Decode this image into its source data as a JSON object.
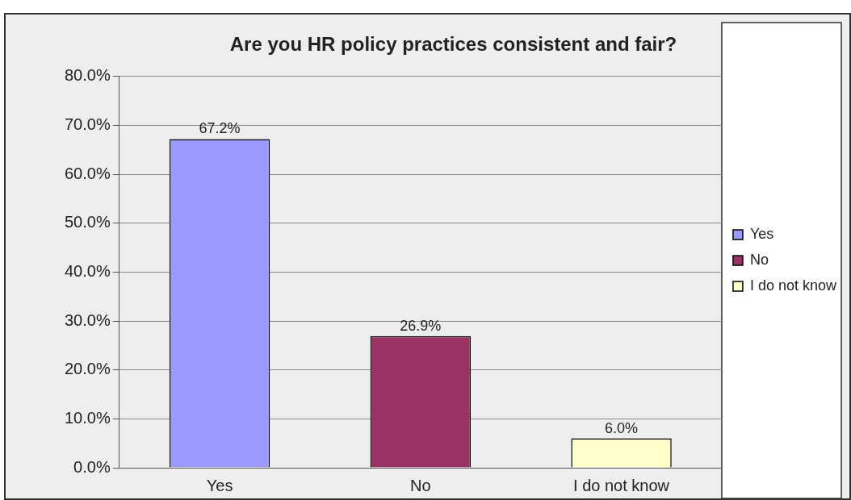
{
  "chart_data": {
    "type": "bar",
    "title": "Are you HR policy practices consistent and fair?",
    "categories": [
      "Yes",
      "No",
      "I do not know"
    ],
    "series": [
      {
        "name": "Yes",
        "color": "#9999ff",
        "values": [
          67.2,
          null,
          null
        ],
        "value_labels": [
          "67.2%",
          null,
          null
        ]
      },
      {
        "name": "No",
        "color": "#993366",
        "values": [
          null,
          26.9,
          null
        ],
        "value_labels": [
          null,
          "26.9%",
          null
        ]
      },
      {
        "name": "I do not know",
        "color": "#ffffcc",
        "values": [
          null,
          null,
          6.0
        ],
        "value_labels": [
          null,
          null,
          "6.0%"
        ]
      }
    ],
    "ylim": [
      0,
      80
    ],
    "yticks": [
      {
        "value": 0,
        "label": "0.0%"
      },
      {
        "value": 10,
        "label": "10.0%"
      },
      {
        "value": 20,
        "label": "20.0%"
      },
      {
        "value": 30,
        "label": "30.0%"
      },
      {
        "value": 40,
        "label": "40.0%"
      },
      {
        "value": 50,
        "label": "50.0%"
      },
      {
        "value": 60,
        "label": "60.0%"
      },
      {
        "value": 70,
        "label": "70.0%"
      },
      {
        "value": 80,
        "label": "80.0%"
      }
    ],
    "grid": "y",
    "legend": "right"
  }
}
